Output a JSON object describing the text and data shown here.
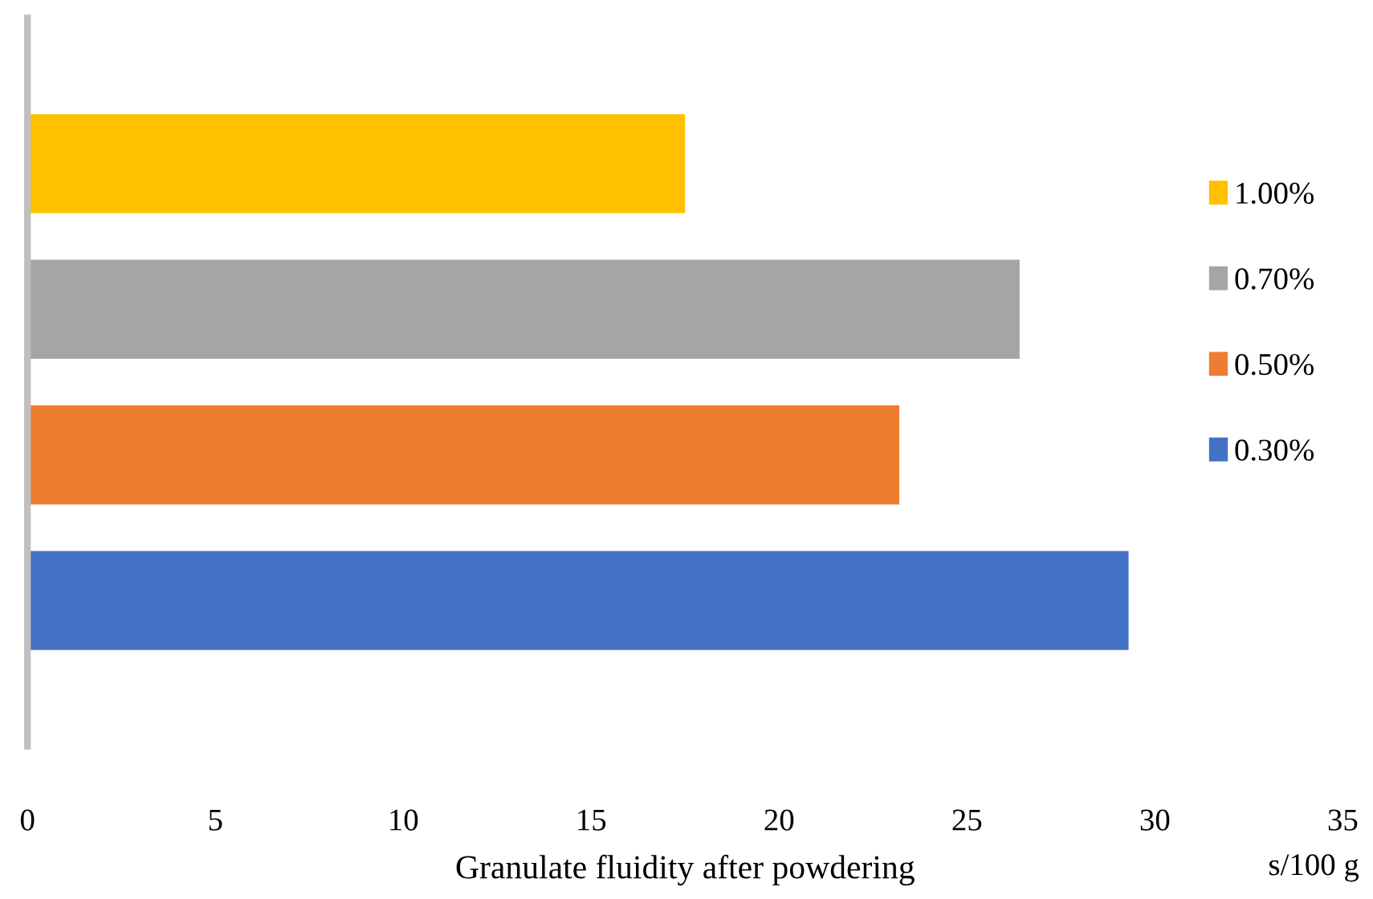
{
  "chart_data": {
    "type": "bar",
    "orientation": "horizontal",
    "xlabel": "Granulate fluidity after powdering",
    "categories": [
      null
    ],
    "series": [
      {
        "name": "0.30%",
        "color": "#4472c4",
        "values": [
          29.3
        ]
      },
      {
        "name": "0.50%",
        "color": "#ed7d31",
        "values": [
          23.2
        ]
      },
      {
        "name": "0.70%",
        "color": "#a5a5a5",
        "values": [
          26.4
        ]
      },
      {
        "name": "1.00%",
        "color": "#ffc000",
        "values": [
          17.5
        ]
      }
    ],
    "xlim": [
      0,
      35
    ],
    "xticks": [
      0,
      5,
      10,
      15,
      20,
      25,
      30,
      35
    ],
    "annotations": [
      "s/100 g"
    ],
    "legend": "right",
    "grid": false
  }
}
